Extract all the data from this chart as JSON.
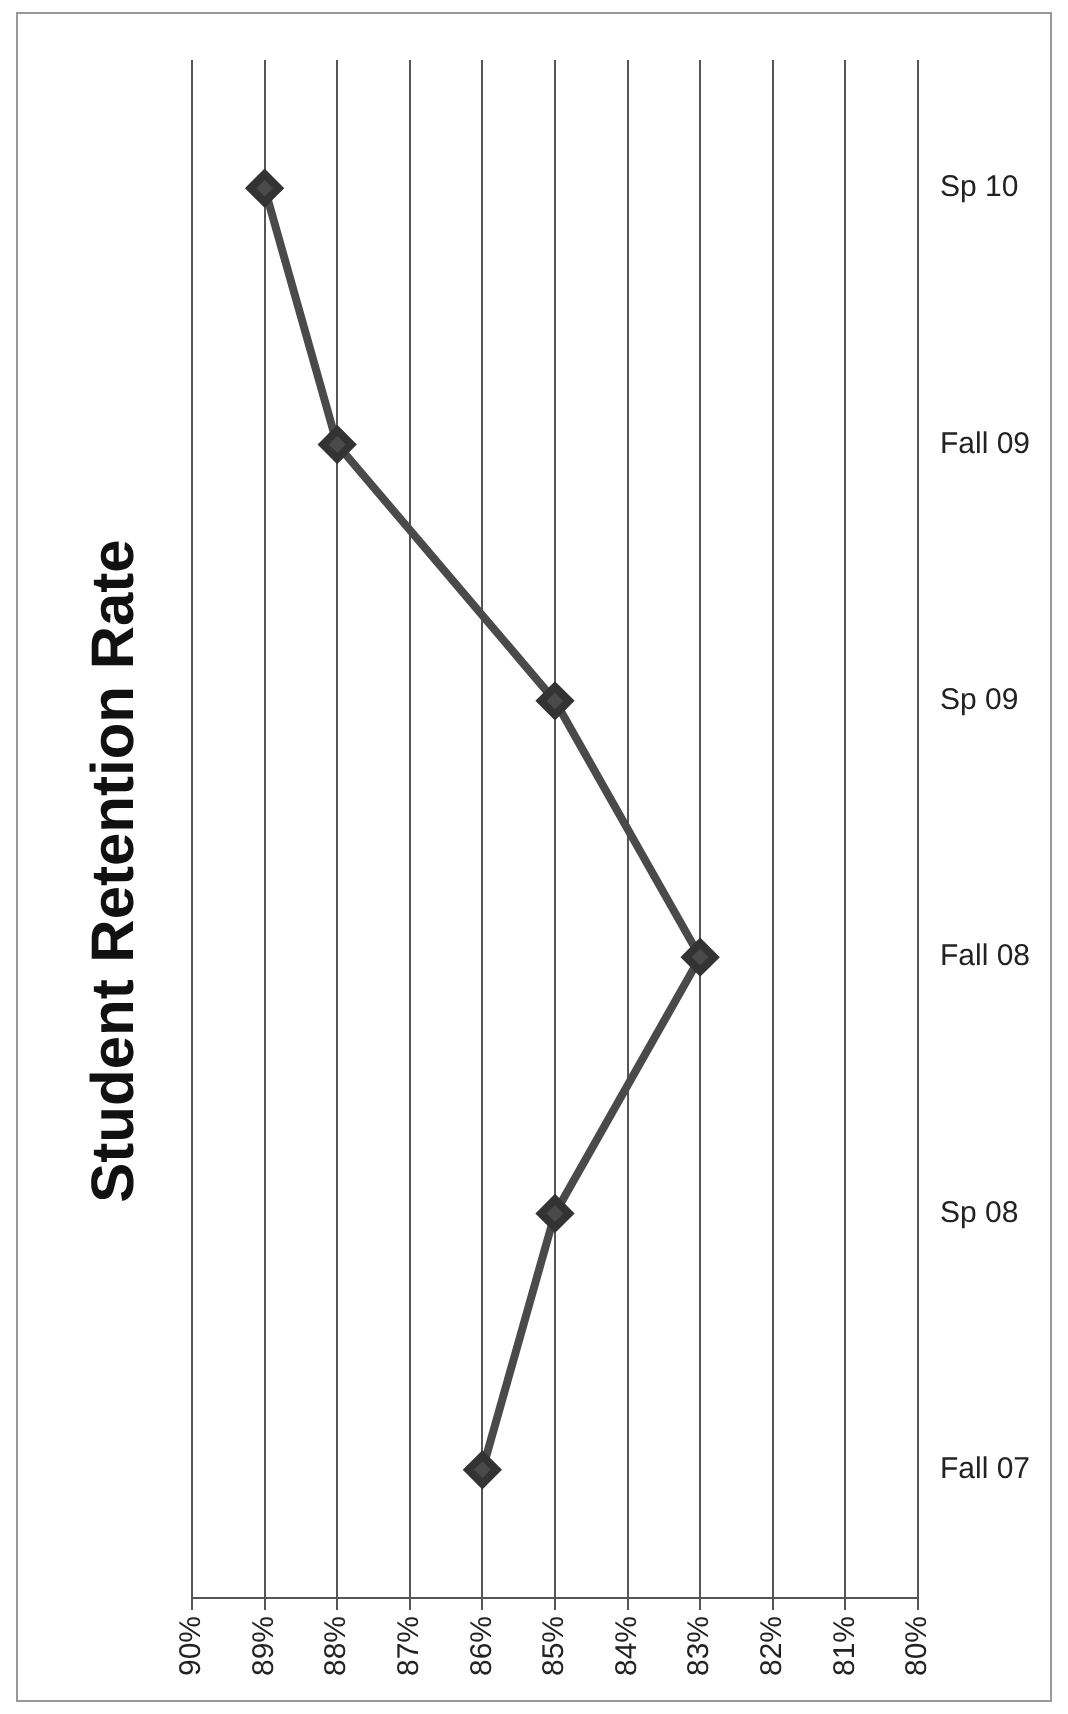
{
  "chart_data": {
    "type": "line",
    "title": "Student Retention Rate",
    "orientation": "horizontal",
    "categories": [
      "Sp 10",
      "Fall 09",
      "Sp 09",
      "Fall 08",
      "Sp 08",
      "Fall 07"
    ],
    "series": [
      {
        "color": "#4a4a4a",
        "values": [
          89,
          88,
          85,
          83,
          85,
          86
        ]
      }
    ],
    "xlim": [
      90,
      80
    ],
    "xticks": [
      {
        "value": 90,
        "label": "90%"
      },
      {
        "value": 89,
        "label": "89%"
      },
      {
        "value": 88,
        "label": "88%"
      },
      {
        "value": 87,
        "label": "87%"
      },
      {
        "value": 86,
        "label": "86%"
      },
      {
        "value": 85,
        "label": "85%"
      },
      {
        "value": 84,
        "label": "84%"
      },
      {
        "value": 83,
        "label": "83%"
      },
      {
        "value": 82,
        "label": "82%"
      },
      {
        "value": 81,
        "label": "81%"
      },
      {
        "value": 80,
        "label": "80%"
      }
    ],
    "grid": "x",
    "legend": false,
    "marker": "diamond",
    "line_style": "solid"
  }
}
